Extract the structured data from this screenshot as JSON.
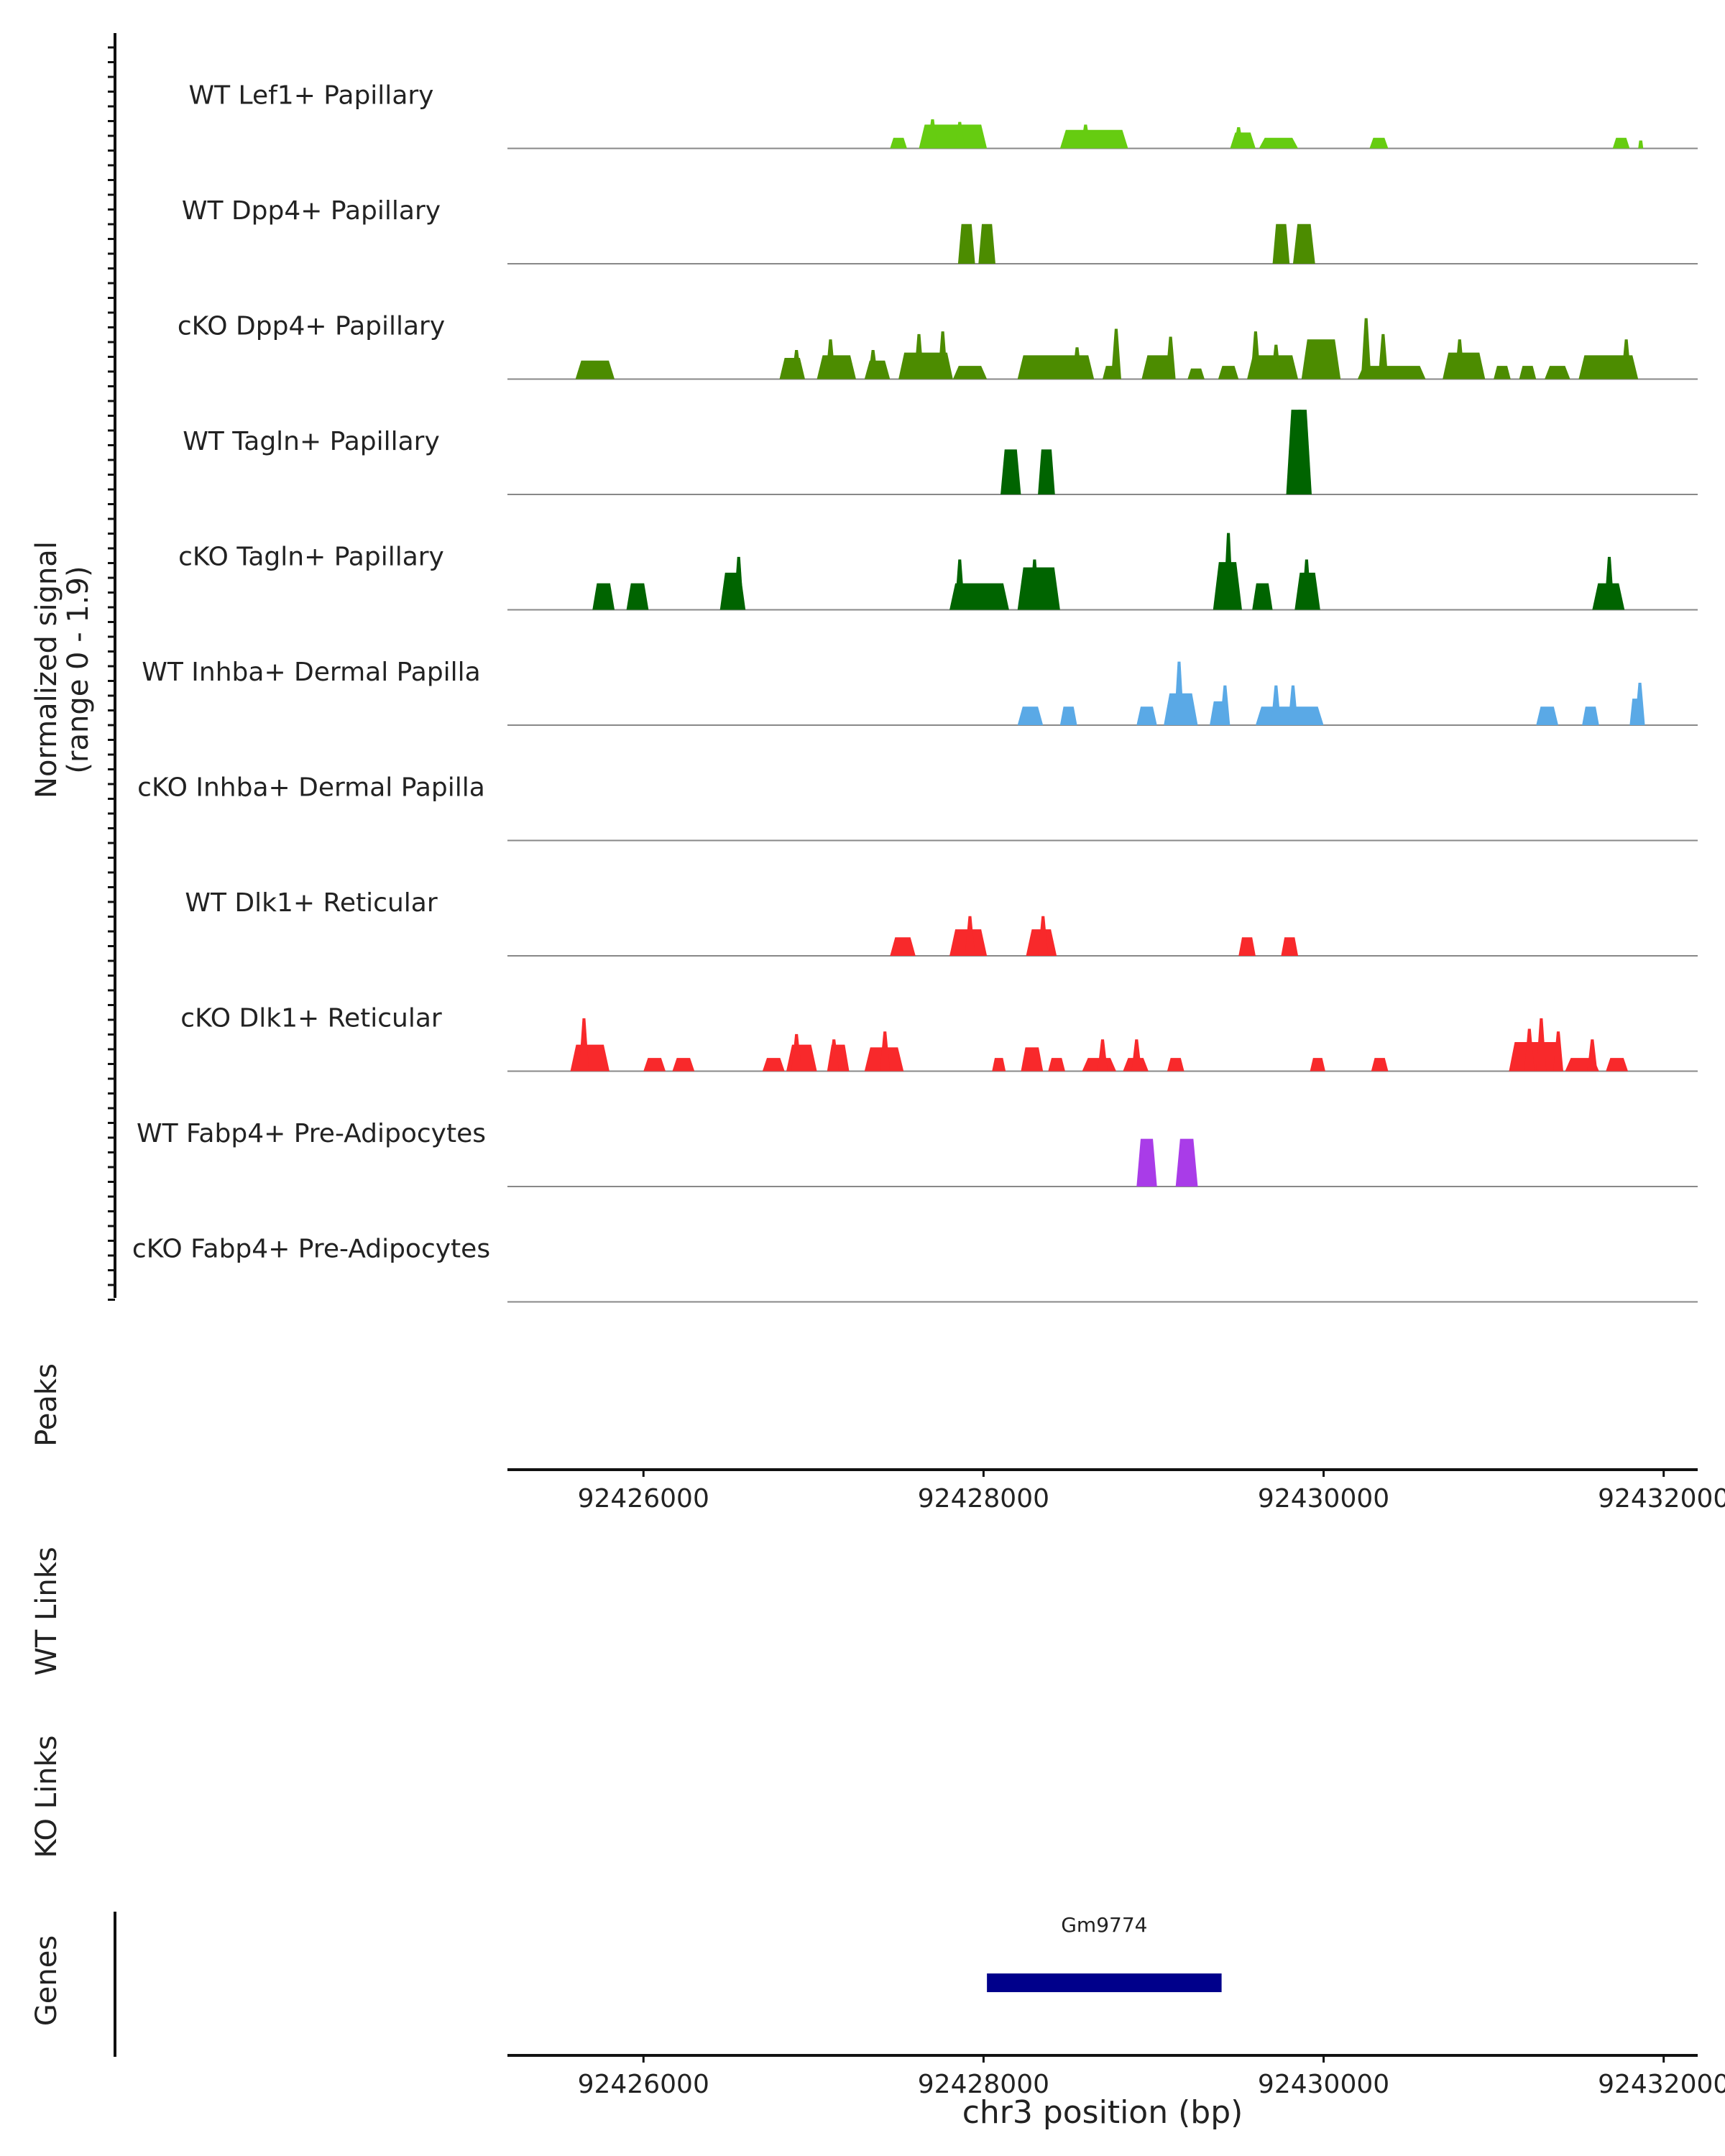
{
  "chart_data": {
    "type": "area",
    "chromosome": "chr3",
    "xlim": [
      92425200,
      92432200
    ],
    "signal_range_label": "(range 0 - 1.9)",
    "y_label_main": "Normalized signal",
    "ylim": [
      0,
      1.9
    ],
    "tracks": [
      {
        "name": "WT Lef1+ Papillary",
        "color": "#66CC11",
        "peaks": [
          [
            92427450,
            92427550,
            0.2
          ],
          [
            92427620,
            92428020,
            0.45
          ],
          [
            92428450,
            92428850,
            0.35
          ],
          [
            92429450,
            92429600,
            0.3
          ],
          [
            92429620,
            92429850,
            0.2
          ],
          [
            92430270,
            92430380,
            0.2
          ],
          [
            92431700,
            92431800,
            0.2
          ],
          [
            92431850,
            92431880,
            0.15
          ]
        ],
        "spikes": [
          [
            92427700,
            0.55
          ],
          [
            92427860,
            0.5
          ],
          [
            92428600,
            0.45
          ],
          [
            92429500,
            0.4
          ]
        ]
      },
      {
        "name": "WT Dpp4+ Papillary",
        "color": "#4C8C00",
        "peaks": [
          [
            92427850,
            92427950,
            0.75
          ],
          [
            92427970,
            92428070,
            0.75
          ],
          [
            92429700,
            92429800,
            0.75
          ],
          [
            92429820,
            92429950,
            0.75
          ]
        ],
        "spikes": []
      },
      {
        "name": "cKO Dpp4+ Papillary",
        "color": "#4C8C00",
        "peaks": [
          [
            92425600,
            92425830,
            0.35
          ],
          [
            92426800,
            92426950,
            0.4
          ],
          [
            92427020,
            92427250,
            0.45
          ],
          [
            92427300,
            92427450,
            0.35
          ],
          [
            92427500,
            92427820,
            0.5
          ],
          [
            92427820,
            92428020,
            0.25
          ],
          [
            92428200,
            92428650,
            0.45
          ],
          [
            92428700,
            92428800,
            0.25
          ],
          [
            92428930,
            92429120,
            0.45
          ],
          [
            92429200,
            92429300,
            0.2
          ],
          [
            92429380,
            92429500,
            0.25
          ],
          [
            92429550,
            92429850,
            0.45
          ],
          [
            92429870,
            92430100,
            0.75
          ],
          [
            92430200,
            92430600,
            0.25
          ],
          [
            92430700,
            92430950,
            0.5
          ],
          [
            92431000,
            92431100,
            0.25
          ],
          [
            92431150,
            92431250,
            0.25
          ],
          [
            92431300,
            92431450,
            0.25
          ],
          [
            92431500,
            92431850,
            0.45
          ]
        ],
        "spikes": [
          [
            92426900,
            0.55
          ],
          [
            92427100,
            0.75
          ],
          [
            92427350,
            0.55
          ],
          [
            92427620,
            0.85
          ],
          [
            92427760,
            0.9
          ],
          [
            92428550,
            0.6
          ],
          [
            92428780,
            0.95
          ],
          [
            92429100,
            0.8
          ],
          [
            92429600,
            0.9
          ],
          [
            92429720,
            0.65
          ],
          [
            92430250,
            1.15
          ],
          [
            92430350,
            0.85
          ],
          [
            92430800,
            0.75
          ],
          [
            92431780,
            0.75
          ]
        ]
      },
      {
        "name": "WT Tagln+ Papillary",
        "color": "#006400",
        "peaks": [
          [
            92428100,
            92428220,
            0.85
          ],
          [
            92428320,
            92428420,
            0.85
          ],
          [
            92429780,
            92429930,
            1.6
          ]
        ],
        "spikes": [
          [
            92429860,
            1.6
          ]
        ]
      },
      {
        "name": "cKO Tagln+ Papillary",
        "color": "#006400",
        "peaks": [
          [
            92425700,
            92425830,
            0.5
          ],
          [
            92425900,
            92426030,
            0.5
          ],
          [
            92426450,
            92426600,
            0.7
          ],
          [
            92427800,
            92428150,
            0.5
          ],
          [
            92428200,
            92428450,
            0.8
          ],
          [
            92429350,
            92429520,
            0.9
          ],
          [
            92429580,
            92429700,
            0.5
          ],
          [
            92429830,
            92429980,
            0.7
          ],
          [
            92431580,
            92431770,
            0.5
          ]
        ],
        "spikes": [
          [
            92426560,
            1.0
          ],
          [
            92427860,
            0.95
          ],
          [
            92428300,
            0.95
          ],
          [
            92429440,
            1.45
          ],
          [
            92429900,
            0.95
          ],
          [
            92431680,
            1.0
          ]
        ]
      },
      {
        "name": "WT Inhba+ Dermal Papilla",
        "color": "#5AA9E6",
        "peaks": [
          [
            92428200,
            92428350,
            0.35
          ],
          [
            92428450,
            92428550,
            0.35
          ],
          [
            92428900,
            92429020,
            0.35
          ],
          [
            92429060,
            92429260,
            0.6
          ],
          [
            92429330,
            92429450,
            0.45
          ],
          [
            92429600,
            92430000,
            0.35
          ],
          [
            92431250,
            92431380,
            0.35
          ],
          [
            92431520,
            92431620,
            0.35
          ],
          [
            92431800,
            92431880,
            0.5
          ]
        ],
        "spikes": [
          [
            92429150,
            1.2
          ],
          [
            92429420,
            0.75
          ],
          [
            92429720,
            0.75
          ],
          [
            92429820,
            0.75
          ],
          [
            92431860,
            0.8
          ]
        ]
      },
      {
        "name": "cKO Inhba+ Dermal Papilla",
        "color": "#5AA9E6",
        "peaks": [],
        "spikes": []
      },
      {
        "name": "WT Dlk1+ Reticular",
        "color": "#F8292B",
        "peaks": [
          [
            92427450,
            92427600,
            0.35
          ],
          [
            92427800,
            92428020,
            0.5
          ],
          [
            92428250,
            92428430,
            0.5
          ],
          [
            92429500,
            92429600,
            0.35
          ],
          [
            92429750,
            92429850,
            0.35
          ]
        ],
        "spikes": [
          [
            92427920,
            0.75
          ],
          [
            92428350,
            0.75
          ]
        ]
      },
      {
        "name": "cKO Dlk1+ Reticular",
        "color": "#F8292B",
        "peaks": [
          [
            92425570,
            92425800,
            0.5
          ],
          [
            92426000,
            92426130,
            0.25
          ],
          [
            92426170,
            92426300,
            0.25
          ],
          [
            92426700,
            92426830,
            0.25
          ],
          [
            92426840,
            92427020,
            0.5
          ],
          [
            92427080,
            92427210,
            0.5
          ],
          [
            92427300,
            92427530,
            0.45
          ],
          [
            92428050,
            92428130,
            0.25
          ],
          [
            92428220,
            92428350,
            0.45
          ],
          [
            92428380,
            92428480,
            0.25
          ],
          [
            92428580,
            92428780,
            0.25
          ],
          [
            92428820,
            92428970,
            0.25
          ],
          [
            92429080,
            92429180,
            0.25
          ],
          [
            92429920,
            92430010,
            0.25
          ],
          [
            92430280,
            92430380,
            0.25
          ],
          [
            92431090,
            92431400,
            0.55
          ],
          [
            92431420,
            92431620,
            0.25
          ],
          [
            92431660,
            92431790,
            0.25
          ]
        ],
        "spikes": [
          [
            92425650,
            1.0
          ],
          [
            92426900,
            0.7
          ],
          [
            92427120,
            0.6
          ],
          [
            92427420,
            0.75
          ],
          [
            92428700,
            0.6
          ],
          [
            92428900,
            0.6
          ],
          [
            92431210,
            0.8
          ],
          [
            92431280,
            1.0
          ],
          [
            92431380,
            0.75
          ],
          [
            92431580,
            0.6
          ]
        ]
      },
      {
        "name": "WT Fabp4+ Pre-Adipocytes",
        "color": "#A93CE8",
        "peaks": [
          [
            92428900,
            92429020,
            0.9
          ],
          [
            92429130,
            92429260,
            0.9
          ]
        ],
        "spikes": []
      },
      {
        "name": "cKO Fabp4+ Pre-Adipocytes",
        "color": "#A93CE8",
        "peaks": [],
        "spikes": []
      }
    ],
    "panels": {
      "peaks": "Peaks",
      "wt_links": "WT Links",
      "ko_links": "KO Links",
      "genes": "Genes"
    },
    "x_ticks": [
      92426000,
      92428000,
      92430000,
      92432000
    ],
    "x_tick_labels": [
      "92426000",
      "92428000",
      "92430000",
      "92432000"
    ],
    "xlabel": "chr3 position (bp)",
    "genes": [
      {
        "name": "Gm9774",
        "start": 92428020,
        "end": 92429400,
        "color": "#00008B"
      }
    ]
  }
}
